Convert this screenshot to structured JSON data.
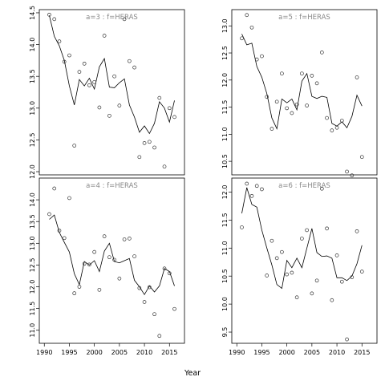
{
  "chart_data": {
    "type": "scatter",
    "xlabel": "Year",
    "x_ticks": [
      1990,
      1995,
      2000,
      2005,
      2010,
      2015
    ],
    "xlim": [
      1989,
      2018
    ],
    "panels": [
      {
        "title": "a=3 : f=HERAS",
        "ylim": [
          11.95,
          14.55
        ],
        "y_ticks": [
          "12.0",
          "12.5",
          "13.0",
          "13.5",
          "14.0",
          "14.5"
        ],
        "points": [
          [
            1991,
            14.47
          ],
          [
            1992,
            14.4
          ],
          [
            1993,
            14.05
          ],
          [
            1994,
            13.73
          ],
          [
            1995,
            13.83
          ],
          [
            1996,
            12.41
          ],
          [
            1997,
            13.57
          ],
          [
            1998,
            13.7
          ],
          [
            1999,
            13.36
          ],
          [
            2000,
            13.41
          ],
          [
            2001,
            13.01
          ],
          [
            2002,
            14.14
          ],
          [
            2003,
            12.88
          ],
          [
            2004,
            13.5
          ],
          [
            2005,
            13.04
          ],
          [
            2006,
            14.4
          ],
          [
            2007,
            13.74
          ],
          [
            2008,
            13.64
          ],
          [
            2009,
            12.23
          ],
          [
            2010,
            12.45
          ],
          [
            2011,
            12.47
          ],
          [
            2012,
            12.38
          ],
          [
            2013,
            13.16
          ],
          [
            2014,
            12.08
          ],
          [
            2015,
            13.0
          ],
          [
            2016,
            12.86
          ]
        ],
        "line": [
          [
            1991,
            14.46
          ],
          [
            1992,
            14.13
          ],
          [
            1993,
            13.98
          ],
          [
            1994,
            13.75
          ],
          [
            1995,
            13.35
          ],
          [
            1996,
            13.05
          ],
          [
            1997,
            13.45
          ],
          [
            1998,
            13.35
          ],
          [
            1999,
            13.47
          ],
          [
            2000,
            13.3
          ],
          [
            2001,
            13.65
          ],
          [
            2002,
            13.78
          ],
          [
            2003,
            13.33
          ],
          [
            2004,
            13.32
          ],
          [
            2005,
            13.4
          ],
          [
            2006,
            13.46
          ],
          [
            2007,
            13.05
          ],
          [
            2008,
            12.86
          ],
          [
            2009,
            12.62
          ],
          [
            2010,
            12.72
          ],
          [
            2011,
            12.6
          ],
          [
            2012,
            12.76
          ],
          [
            2013,
            13.1
          ],
          [
            2014,
            13.0
          ],
          [
            2015,
            12.78
          ],
          [
            2016,
            13.12
          ]
        ]
      },
      {
        "title": "a=5 : f=HERAS",
        "ylim": [
          10.25,
          13.3
        ],
        "y_ticks": [
          "10.5",
          "11.0",
          "11.5",
          "12.0",
          "12.5",
          "13.0"
        ],
        "points": [
          [
            1991,
            12.77
          ],
          [
            1992,
            13.2
          ],
          [
            1993,
            12.97
          ],
          [
            1994,
            12.38
          ],
          [
            1995,
            12.44
          ],
          [
            1996,
            11.69
          ],
          [
            1997,
            11.1
          ],
          [
            1998,
            11.6
          ],
          [
            1999,
            12.12
          ],
          [
            2000,
            11.48
          ],
          [
            2001,
            11.39
          ],
          [
            2002,
            11.55
          ],
          [
            2003,
            12.12
          ],
          [
            2004,
            11.53
          ],
          [
            2005,
            12.08
          ],
          [
            2006,
            11.94
          ],
          [
            2007,
            12.51
          ],
          [
            2008,
            11.3
          ],
          [
            2009,
            11.07
          ],
          [
            2010,
            11.12
          ],
          [
            2011,
            11.25
          ],
          [
            2012,
            10.31
          ],
          [
            2013,
            10.24
          ],
          [
            2014,
            12.05
          ],
          [
            2015,
            10.58
          ]
        ],
        "line": [
          [
            1991,
            12.85
          ],
          [
            1992,
            12.65
          ],
          [
            1993,
            12.68
          ],
          [
            1994,
            12.25
          ],
          [
            1995,
            12.05
          ],
          [
            1996,
            11.75
          ],
          [
            1997,
            11.3
          ],
          [
            1998,
            11.1
          ],
          [
            1999,
            11.65
          ],
          [
            2000,
            11.58
          ],
          [
            2001,
            11.65
          ],
          [
            2002,
            11.45
          ],
          [
            2003,
            11.98
          ],
          [
            2004,
            12.12
          ],
          [
            2005,
            11.7
          ],
          [
            2006,
            11.66
          ],
          [
            2007,
            11.7
          ],
          [
            2008,
            11.68
          ],
          [
            2009,
            11.2
          ],
          [
            2010,
            11.15
          ],
          [
            2011,
            11.23
          ],
          [
            2012,
            11.12
          ],
          [
            2013,
            11.33
          ],
          [
            2014,
            11.72
          ],
          [
            2015,
            11.52
          ]
        ]
      },
      {
        "title": "a=4 : f=HERAS",
        "ylim": [
          10.7,
          14.5
        ],
        "y_ticks": [
          "11.0",
          "11.5",
          "12.0",
          "12.5",
          "13.0",
          "13.5",
          "14.0"
        ],
        "points": [
          [
            1991,
            13.67
          ],
          [
            1992,
            14.26
          ],
          [
            1993,
            13.29
          ],
          [
            1994,
            13.12
          ],
          [
            1995,
            14.04
          ],
          [
            1996,
            11.85
          ],
          [
            1997,
            12.0
          ],
          [
            1998,
            12.53
          ],
          [
            1999,
            12.51
          ],
          [
            2000,
            12.8
          ],
          [
            2001,
            11.93
          ],
          [
            2002,
            13.16
          ],
          [
            2003,
            12.68
          ],
          [
            2004,
            12.62
          ],
          [
            2005,
            12.19
          ],
          [
            2006,
            13.09
          ],
          [
            2007,
            13.11
          ],
          [
            2008,
            12.7
          ],
          [
            2009,
            11.97
          ],
          [
            2010,
            11.65
          ],
          [
            2011,
            11.99
          ],
          [
            2012,
            11.37
          ],
          [
            2013,
            10.87
          ],
          [
            2014,
            12.42
          ],
          [
            2015,
            12.31
          ],
          [
            2016,
            11.49
          ]
        ],
        "line": [
          [
            1991,
            13.55
          ],
          [
            1992,
            13.65
          ],
          [
            1993,
            13.25
          ],
          [
            1994,
            13.02
          ],
          [
            1995,
            12.8
          ],
          [
            1996,
            12.3
          ],
          [
            1997,
            12.05
          ],
          [
            1998,
            12.58
          ],
          [
            1999,
            12.5
          ],
          [
            2000,
            12.6
          ],
          [
            2001,
            12.35
          ],
          [
            2002,
            12.82
          ],
          [
            2003,
            13.0
          ],
          [
            2004,
            12.58
          ],
          [
            2005,
            12.55
          ],
          [
            2006,
            12.6
          ],
          [
            2007,
            12.65
          ],
          [
            2008,
            12.15
          ],
          [
            2009,
            12.0
          ],
          [
            2010,
            11.82
          ],
          [
            2011,
            12.02
          ],
          [
            2012,
            11.88
          ],
          [
            2013,
            12.02
          ],
          [
            2014,
            12.42
          ],
          [
            2015,
            12.35
          ],
          [
            2016,
            12.02
          ]
        ]
      },
      {
        "title": "a=6 : f=HERAS",
        "ylim": [
          9.3,
          12.25
        ],
        "y_ticks": [
          "9.5",
          "10.0",
          "10.5",
          "11.0",
          "11.5",
          "12.0"
        ],
        "points": [
          [
            1991,
            11.37
          ],
          [
            1992,
            12.15
          ],
          [
            1993,
            11.93
          ],
          [
            1994,
            12.11
          ],
          [
            1995,
            12.05
          ],
          [
            1996,
            10.51
          ],
          [
            1997,
            11.13
          ],
          [
            1998,
            10.82
          ],
          [
            1999,
            10.93
          ],
          [
            2000,
            10.53
          ],
          [
            2001,
            10.56
          ],
          [
            2002,
            10.12
          ],
          [
            2003,
            11.17
          ],
          [
            2004,
            11.32
          ],
          [
            2005,
            10.19
          ],
          [
            2006,
            10.42
          ],
          [
            2007,
            12.06
          ],
          [
            2008,
            11.35
          ],
          [
            2009,
            10.07
          ],
          [
            2010,
            10.87
          ],
          [
            2011,
            10.4
          ],
          [
            2012,
            9.37
          ],
          [
            2013,
            10.48
          ],
          [
            2014,
            11.3
          ],
          [
            2015,
            10.58
          ]
        ],
        "line": [
          [
            1991,
            11.62
          ],
          [
            1992,
            12.08
          ],
          [
            1993,
            11.78
          ],
          [
            1994,
            11.73
          ],
          [
            1995,
            11.32
          ],
          [
            1996,
            11.0
          ],
          [
            1997,
            10.7
          ],
          [
            1998,
            10.35
          ],
          [
            1999,
            10.28
          ],
          [
            2000,
            10.78
          ],
          [
            2001,
            10.65
          ],
          [
            2002,
            10.82
          ],
          [
            2003,
            10.65
          ],
          [
            2004,
            11.0
          ],
          [
            2005,
            11.35
          ],
          [
            2006,
            10.92
          ],
          [
            2007,
            10.85
          ],
          [
            2008,
            10.86
          ],
          [
            2009,
            10.82
          ],
          [
            2010,
            10.47
          ],
          [
            2011,
            10.47
          ],
          [
            2012,
            10.42
          ],
          [
            2013,
            10.5
          ],
          [
            2014,
            10.72
          ],
          [
            2015,
            11.05
          ]
        ]
      }
    ]
  }
}
